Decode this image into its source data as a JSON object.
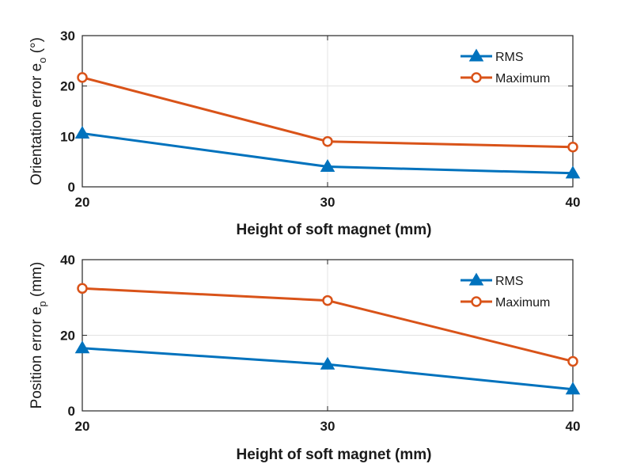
{
  "chart_data": [
    {
      "type": "line",
      "x": [
        20,
        30,
        40
      ],
      "xticks": [
        "20",
        "30",
        "40"
      ],
      "xlim": [
        20,
        40
      ],
      "ylim": [
        0,
        30
      ],
      "yticks": [
        "0",
        "10",
        "20",
        "30"
      ],
      "xlabel": "Height of soft magnet (mm)",
      "ylabel": {
        "main": "Orientation error e",
        "sub": "o",
        "unit": " (°)"
      },
      "grid": true,
      "legend_position": "top-right",
      "series": [
        {
          "name": "RMS",
          "values": [
            10.6,
            4.0,
            2.7
          ],
          "color": "#0072BD",
          "marker": "triangle"
        },
        {
          "name": "Maximum",
          "values": [
            21.7,
            9.0,
            7.9
          ],
          "color": "#D95319",
          "marker": "circle"
        }
      ]
    },
    {
      "type": "line",
      "x": [
        20,
        30,
        40
      ],
      "xticks": [
        "20",
        "30",
        "40"
      ],
      "xlim": [
        20,
        40
      ],
      "ylim": [
        0,
        40
      ],
      "yticks": [
        "0",
        "20",
        "40"
      ],
      "xlabel": "Height of soft magnet (mm)",
      "ylabel": {
        "main": "Position error e",
        "sub": "p",
        "unit": " (mm)"
      },
      "grid": true,
      "legend_position": "top-right",
      "series": [
        {
          "name": "RMS",
          "values": [
            16.6,
            12.3,
            5.7
          ],
          "color": "#0072BD",
          "marker": "triangle"
        },
        {
          "name": "Maximum",
          "values": [
            32.4,
            29.2,
            13.1
          ],
          "color": "#D95319",
          "marker": "circle"
        }
      ]
    }
  ]
}
